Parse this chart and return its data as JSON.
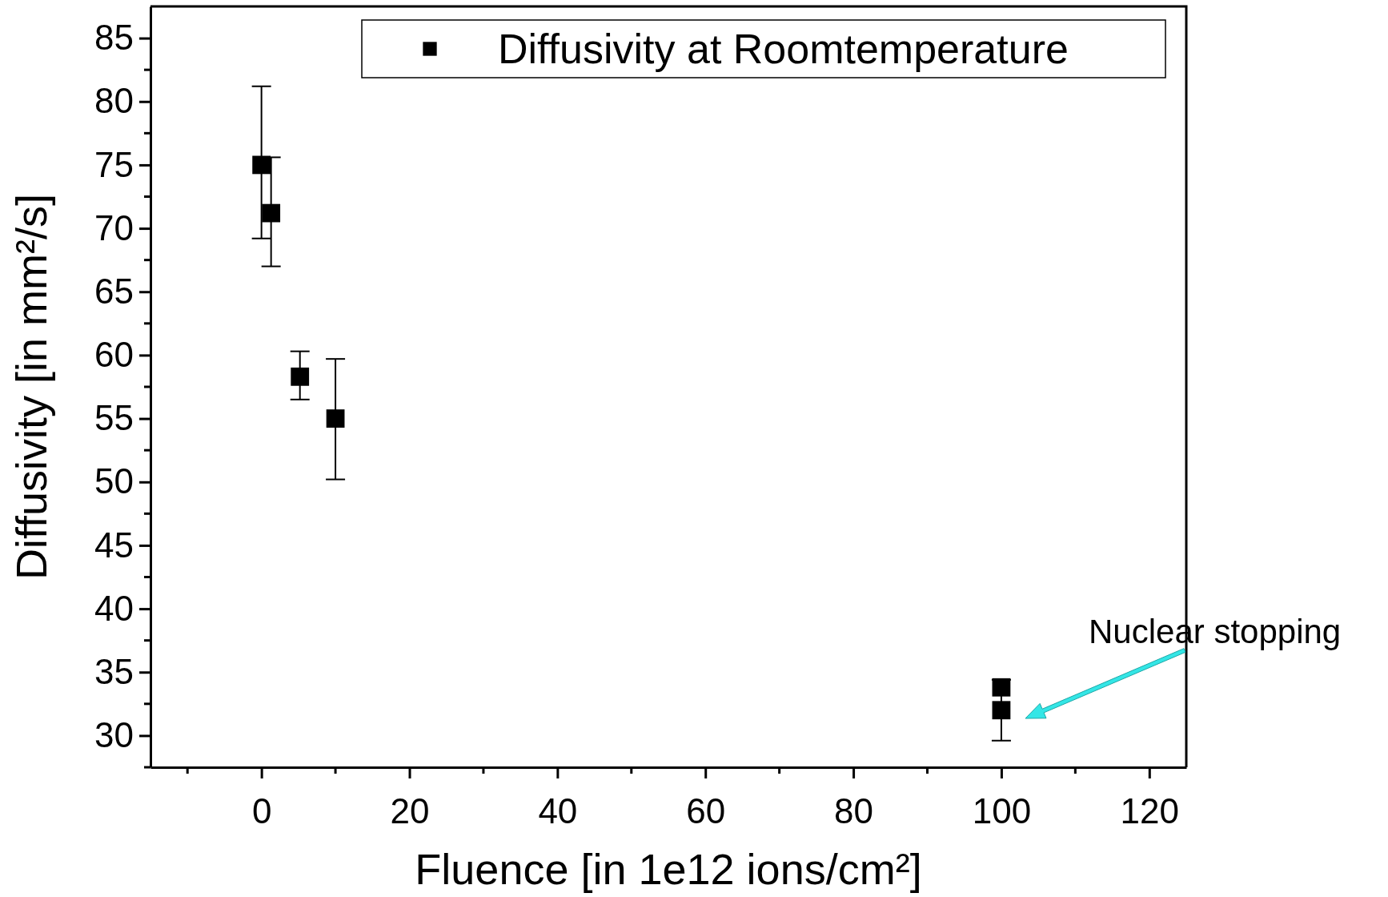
{
  "chart_data": {
    "type": "scatter",
    "xlabel": "Fluence [in 1e12 ions/cm²]",
    "ylabel": "Diffusivity [in mm²/s]",
    "xlim": [
      -15,
      125
    ],
    "xticks": [
      0,
      20,
      40,
      60,
      80,
      100,
      120
    ],
    "ylim": [
      27.5,
      87.5
    ],
    "yticks": [
      30,
      35,
      40,
      45,
      50,
      55,
      60,
      65,
      70,
      75,
      80,
      85
    ],
    "series": [
      {
        "name": "Diffusivity at Roomtemperature",
        "color": "#000000",
        "x": [
          0,
          1.3,
          5.2,
          10,
          100,
          100
        ],
        "values": [
          75,
          71.2,
          58.3,
          55,
          33.8,
          32
        ],
        "errors": [
          [
            69.2,
            81.2
          ],
          [
            67,
            75.6
          ],
          [
            56.5,
            60.3
          ],
          [
            50.2,
            59.7
          ],
          null,
          [
            29.6,
            34.4
          ]
        ]
      }
    ],
    "marker": "square",
    "legend": "top right",
    "grid": false,
    "annotations": [
      "Nuclear stopping"
    ]
  }
}
